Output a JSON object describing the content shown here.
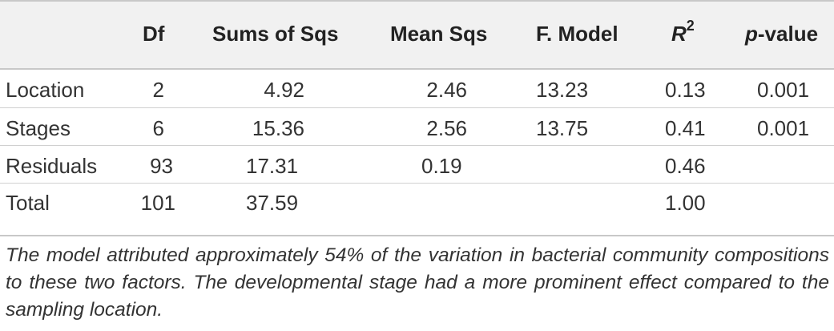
{
  "table": {
    "headers": {
      "df": "Df",
      "ss": "Sums of Sqs",
      "ms": "Mean Sqs",
      "f": "F. Model",
      "r2_letter": "R",
      "r2_exp": "2",
      "p_letter": "p",
      "p_rest": "-value"
    },
    "rows": [
      {
        "label": "Location",
        "df": "2",
        "ss": "4.92",
        "ms": "2.46",
        "f": "13.23",
        "r2": "0.13",
        "p": "0.001"
      },
      {
        "label": "Stages",
        "df": "6",
        "ss": "15.36",
        "ms": "2.56",
        "f": "13.75",
        "r2": "0.41",
        "p": "0.001"
      },
      {
        "label": "Residuals",
        "df": "93",
        "ss": "17.31",
        "ms": "0.19",
        "f": "",
        "r2": "0.46",
        "p": ""
      },
      {
        "label": "Total",
        "df": "101",
        "ss": "37.59",
        "ms": "",
        "f": "",
        "r2": "1.00",
        "p": ""
      }
    ]
  },
  "footnote": "The model attributed approximately 54% of the variation in bacterial community compositions to these two factors. The developmental stage had a more prominent effect compared to the sampling location."
}
